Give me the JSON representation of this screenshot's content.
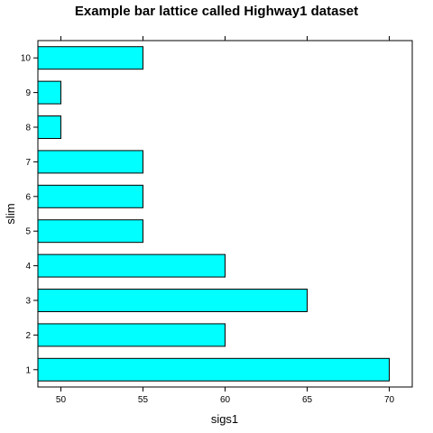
{
  "chart_data": {
    "type": "bar",
    "orientation": "horizontal",
    "title": "Example bar lattice called Highway1 dataset",
    "xlabel": "sigs1",
    "ylabel": "slim",
    "categories": [
      "1",
      "2",
      "3",
      "4",
      "5",
      "6",
      "7",
      "8",
      "9",
      "10"
    ],
    "values": [
      70,
      60,
      65,
      60,
      55,
      55,
      55,
      50,
      50,
      55
    ],
    "xlim": [
      48.6,
      71.4
    ],
    "xticks": [
      50,
      55,
      60,
      65,
      70
    ],
    "grid": false,
    "legend": "none",
    "colors": {
      "bar_fill": "#00FFFF",
      "bar_stroke": "#000000",
      "axis": "#000000"
    }
  }
}
